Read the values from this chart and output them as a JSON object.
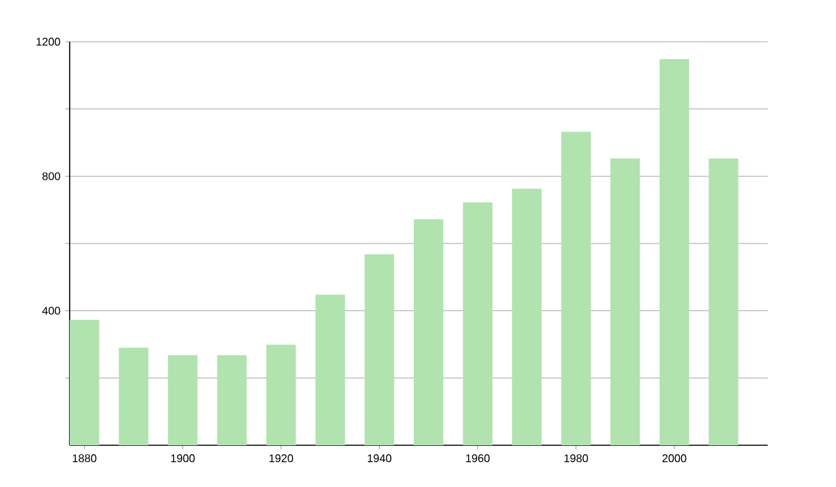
{
  "chart_data": {
    "type": "bar",
    "x": [
      1880,
      1890,
      1900,
      1910,
      1920,
      1930,
      1940,
      1950,
      1960,
      1970,
      1980,
      1990,
      2000,
      2010
    ],
    "values": [
      373,
      290,
      268,
      268,
      299,
      448,
      568,
      672,
      722,
      763,
      932,
      853,
      1148,
      853
    ],
    "color": "#b0e3ae",
    "xlim": [
      1877,
      2019
    ],
    "xticks": [
      1880,
      1900,
      1920,
      1940,
      1960,
      1980,
      2000
    ],
    "ylim": [
      0,
      1200
    ],
    "yticks": [
      {
        "value": 200,
        "label": null
      },
      400,
      {
        "value": 600,
        "label": null
      },
      800,
      {
        "value": 1000,
        "label": null
      },
      1200
    ],
    "grid": "y"
  }
}
